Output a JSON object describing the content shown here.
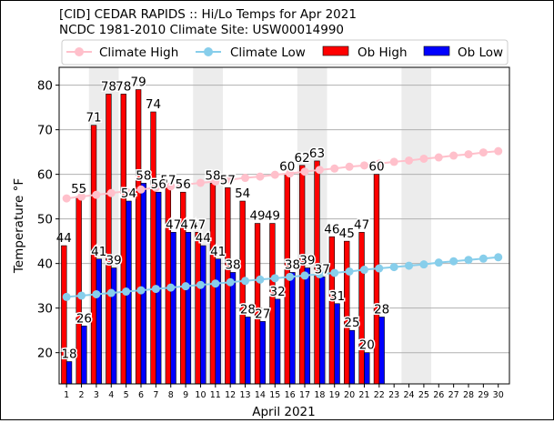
{
  "title_line1": "[CID] CEDAR RAPIDS :: Hi/Lo Temps for Apr 2021",
  "title_line2": "NCDC 1981-2010 Climate Site: USW00014990",
  "chart_data": {
    "type": "bar",
    "xlabel": "April 2021",
    "ylabel": "Temperature °F",
    "ylim": [
      13,
      84
    ],
    "yticks": [
      20,
      30,
      40,
      50,
      60,
      70,
      80
    ],
    "grid": "horizontal",
    "legend_placement": "top",
    "days": [
      1,
      2,
      3,
      4,
      5,
      6,
      7,
      8,
      9,
      10,
      11,
      12,
      13,
      14,
      15,
      16,
      17,
      18,
      19,
      20,
      21,
      22,
      23,
      24,
      25,
      26,
      27,
      28,
      29,
      30
    ],
    "shaded_days": [
      3,
      4,
      10,
      11,
      17,
      18,
      24,
      25
    ],
    "series": [
      {
        "name": "Climate High",
        "kind": "line",
        "color": "#ffc0cb",
        "values": [
          54.6,
          55.0,
          55.4,
          55.8,
          56.2,
          56.6,
          57.0,
          57.3,
          57.7,
          58.1,
          58.4,
          58.8,
          59.2,
          59.5,
          59.9,
          60.2,
          60.6,
          61.0,
          61.3,
          61.7,
          62.0,
          62.4,
          62.8,
          63.1,
          63.5,
          63.8,
          64.2,
          64.5,
          64.9,
          65.2
        ]
      },
      {
        "name": "Climate Low",
        "kind": "line",
        "color": "#87ceeb",
        "values": [
          32.5,
          32.8,
          33.1,
          33.4,
          33.7,
          34.0,
          34.3,
          34.6,
          34.9,
          35.2,
          35.5,
          35.8,
          36.1,
          36.4,
          36.7,
          37.0,
          37.3,
          37.6,
          37.9,
          38.2,
          38.6,
          38.9,
          39.2,
          39.5,
          39.8,
          40.2,
          40.5,
          40.8,
          41.1,
          41.4
        ]
      },
      {
        "name": "Ob High",
        "kind": "bar",
        "color": "#ff0000",
        "values": [
          44,
          55,
          71,
          78,
          78,
          79,
          74,
          57,
          56,
          47,
          58,
          57,
          54,
          49,
          49,
          60,
          62,
          63,
          46,
          45,
          47,
          60
        ]
      },
      {
        "name": "Ob Low",
        "kind": "bar",
        "color": "#0000ff",
        "values": [
          18,
          26,
          41,
          39,
          54,
          58,
          56,
          47,
          47,
          44,
          41,
          38,
          28,
          27,
          32,
          38,
          39,
          37,
          31,
          25,
          20,
          28
        ]
      }
    ]
  }
}
